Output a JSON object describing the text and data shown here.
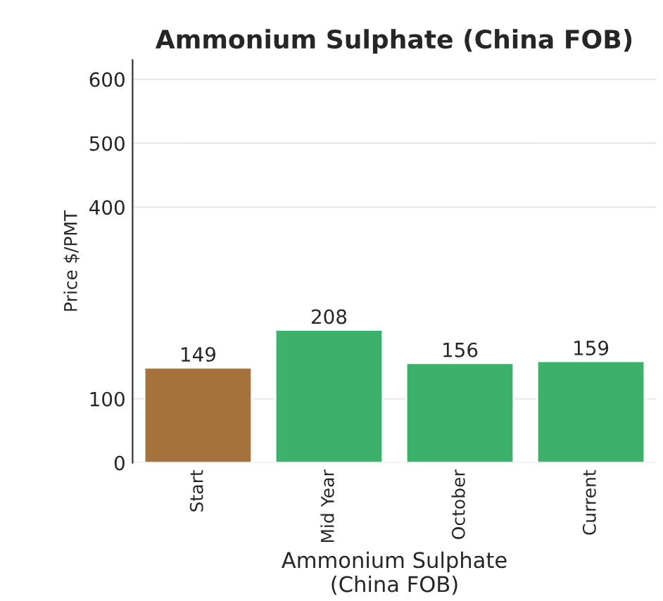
{
  "chart_data": {
    "type": "bar",
    "title": "Ammonium Sulphate (China FOB)",
    "xlabel": "Ammonium Sulphate\n(China FOB)",
    "ylabel": "Price $/PMT",
    "categories": [
      "Start",
      "Mid Year",
      "October",
      "Current"
    ],
    "values": [
      149,
      208,
      156,
      159
    ],
    "colors": [
      "#a5713c",
      "#3cb16b",
      "#3cb16b",
      "#3cb16b"
    ],
    "data_labels": true,
    "ylim": [
      0,
      630
    ],
    "yticks": [
      0,
      100,
      400,
      500,
      600
    ],
    "grid": "y"
  }
}
